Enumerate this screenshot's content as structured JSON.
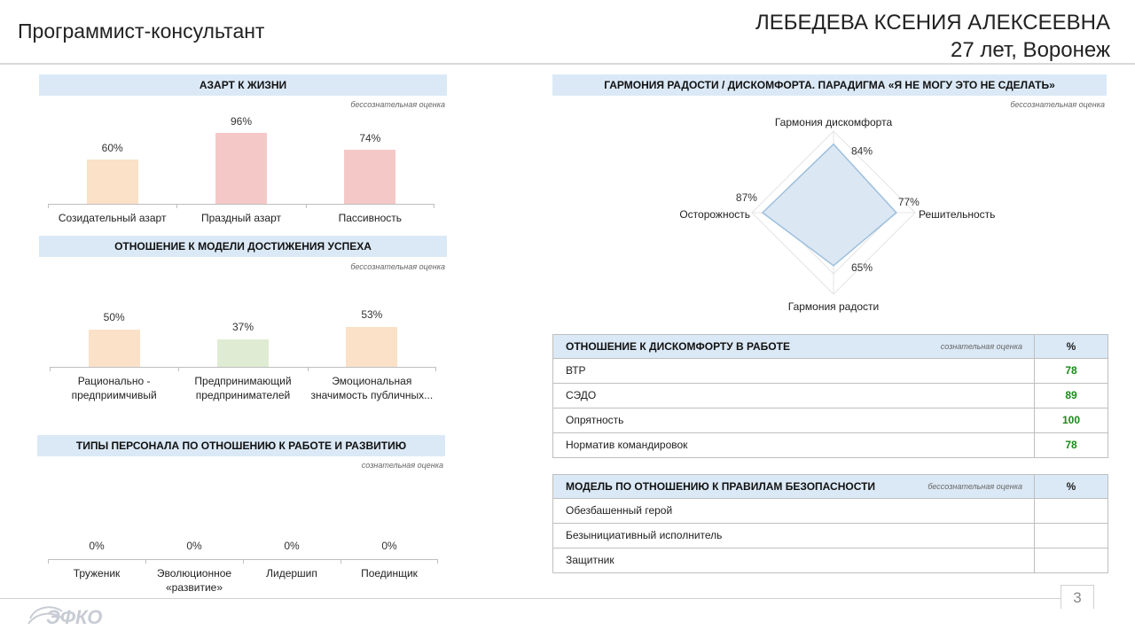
{
  "header": {
    "job_title": "Программист-консультант",
    "person_name": "ЛЕБЕДЕВА КСЕНИЯ АЛЕКСЕЕВНА",
    "person_info": "27 лет, Воронеж"
  },
  "azart": {
    "title": "АЗАРТ К ЖИЗНИ",
    "note": "бессознательная оценка",
    "chart_data": {
      "type": "bar",
      "categories": [
        "Созидательный азарт",
        "Праздный азарт",
        "Пассивность"
      ],
      "values": [
        60,
        96,
        74
      ],
      "labels": [
        "60%",
        "96%",
        "74%"
      ],
      "colors": [
        "#fbe1c8",
        "#f5c8c8",
        "#f5c8c8"
      ]
    }
  },
  "success": {
    "title": "ОТНОШЕНИЕ К МОДЕЛИ ДОСТИЖЕНИЯ УСПЕХА",
    "note": "бессознательная оценка",
    "chart_data": {
      "type": "bar",
      "categories": [
        "Рационально -\nпредприимчивый",
        "Предпринимающий\nпредпринимателей",
        "Эмоциональная\nзначимость публичных..."
      ],
      "values": [
        50,
        37,
        53
      ],
      "labels": [
        "50%",
        "37%",
        "53%"
      ],
      "colors": [
        "#fbe1c8",
        "#dfecd3",
        "#fbe1c8"
      ]
    }
  },
  "personnel": {
    "title": "ТИПЫ ПЕРСОНАЛА ПО ОТНОШЕНИЮ К РАБОТЕ И РАЗВИТИЮ",
    "note": "сознательная оценка",
    "chart_data": {
      "type": "bar",
      "categories": [
        "Труженик",
        "Эволюционное\n«развитие»",
        "Лидершип",
        "Поединщик"
      ],
      "values": [
        0,
        0,
        0,
        0
      ],
      "labels": [
        "0%",
        "0%",
        "0%",
        "0%"
      ]
    }
  },
  "harmony": {
    "title": "ГАРМОНИЯ РАДОСТИ / ДИСКОМФОРТА. ПАРАДИГМА «Я НЕ МОГУ ЭТО НЕ СДЕЛАТЬ»",
    "note": "бессознательная оценка",
    "chart_data": {
      "type": "radar",
      "axes": [
        "Гармония дискомфорта",
        "Решительность",
        "Гармония радости",
        "Осторожность"
      ],
      "values": [
        84,
        77,
        65,
        87
      ],
      "labels": [
        "84%",
        "77%",
        "65%",
        "87%"
      ],
      "fill": "#dbe7f3",
      "stroke": "#9dbfdd"
    }
  },
  "discomfort": {
    "title": "ОТНОШЕНИЕ К ДИСКОМФОРТУ В РАБОТЕ",
    "note": "сознательная оценка",
    "pct_header": "%",
    "rows": [
      {
        "label": "ВТР",
        "value": "78"
      },
      {
        "label": "СЭДО",
        "value": "89"
      },
      {
        "label": "Опрятность",
        "value": "100"
      },
      {
        "label": "Норматив командировок",
        "value": "78"
      }
    ]
  },
  "safety": {
    "title": "МОДЕЛЬ ПО ОТНОШЕНИЮ К ПРАВИЛАМ БЕЗОПАСНОСТИ",
    "note": "бессознательная оценка",
    "pct_header": "%",
    "rows": [
      {
        "label": "Обезбашенный герой",
        "value": ""
      },
      {
        "label": "Безынициативный исполнитель",
        "value": ""
      },
      {
        "label": "Защитник",
        "value": ""
      }
    ]
  },
  "footer": {
    "page_number": "3",
    "logo_text": "ЭФКО"
  }
}
